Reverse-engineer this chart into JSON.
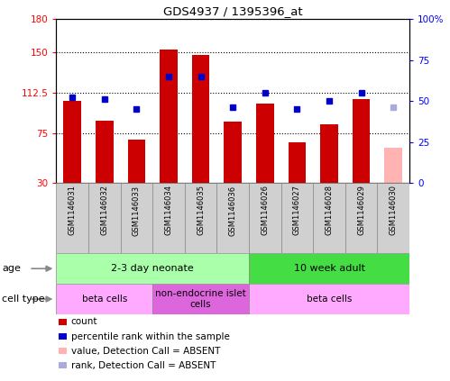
{
  "title": "GDS4937 / 1395396_at",
  "samples": [
    "GSM1146031",
    "GSM1146032",
    "GSM1146033",
    "GSM1146034",
    "GSM1146035",
    "GSM1146036",
    "GSM1146026",
    "GSM1146027",
    "GSM1146028",
    "GSM1146029",
    "GSM1146030"
  ],
  "counts": [
    105,
    87,
    70,
    152,
    147,
    86,
    103,
    67,
    84,
    107,
    null
  ],
  "ranks": [
    52,
    51,
    45,
    65,
    65,
    46,
    55,
    45,
    50,
    55,
    null
  ],
  "absent_count": [
    null,
    null,
    null,
    null,
    null,
    null,
    null,
    null,
    null,
    null,
    62
  ],
  "absent_rank": [
    null,
    null,
    null,
    null,
    null,
    null,
    null,
    null,
    null,
    null,
    46
  ],
  "bar_color": "#cc0000",
  "absent_bar_color": "#ffb3b3",
  "rank_color": "#0000cc",
  "absent_rank_color": "#aaaadd",
  "left_ylim": [
    30,
    180
  ],
  "right_ylim": [
    0,
    100
  ],
  "left_yticks": [
    30,
    75,
    112.5,
    150,
    180
  ],
  "left_yticklabels": [
    "30",
    "75",
    "112.5",
    "150",
    "180"
  ],
  "right_yticks": [
    0,
    25,
    50,
    75,
    100
  ],
  "right_yticklabels": [
    "0",
    "25",
    "50",
    "75",
    "100%"
  ],
  "hlines": [
    75,
    112.5,
    150
  ],
  "age_groups": [
    {
      "label": "2-3 day neonate",
      "start": 0,
      "end": 6,
      "color": "#aaffaa"
    },
    {
      "label": "10 week adult",
      "start": 6,
      "end": 11,
      "color": "#44dd44"
    }
  ],
  "cell_type_groups": [
    {
      "label": "beta cells",
      "start": 0,
      "end": 3,
      "color": "#ffaaff"
    },
    {
      "label": "non-endocrine islet\ncells",
      "start": 3,
      "end": 6,
      "color": "#dd66dd"
    },
    {
      "label": "beta cells",
      "start": 6,
      "end": 11,
      "color": "#ffaaff"
    }
  ],
  "legend_items": [
    {
      "label": "count",
      "color": "#cc0000"
    },
    {
      "label": "percentile rank within the sample",
      "color": "#0000cc"
    },
    {
      "label": "value, Detection Call = ABSENT",
      "color": "#ffb3b3"
    },
    {
      "label": "rank, Detection Call = ABSENT",
      "color": "#aaaadd"
    }
  ],
  "age_label": "age",
  "cell_type_label": "cell type",
  "sample_box_color": "#d0d0d0",
  "sample_box_edge": "#888888"
}
